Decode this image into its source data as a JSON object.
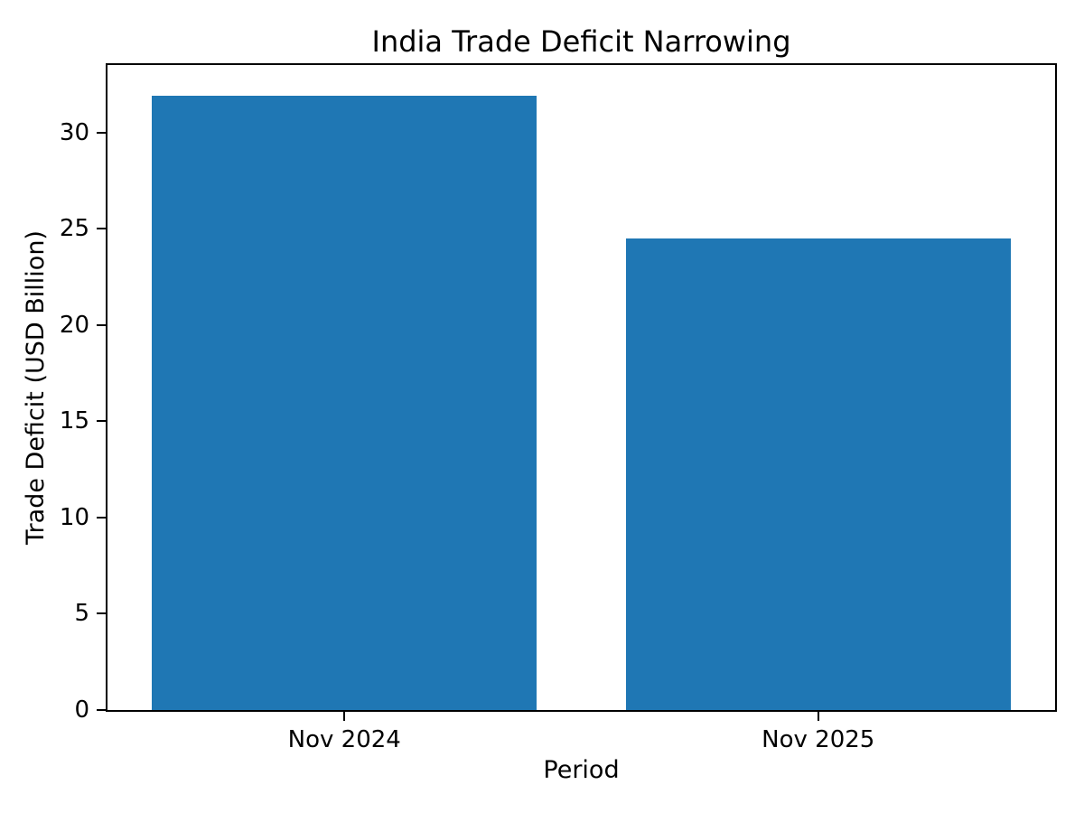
{
  "chart_data": {
    "type": "bar",
    "title": "India Trade Deficit Narrowing",
    "xlabel": "Period",
    "ylabel": "Trade Deficit (USD Billion)",
    "categories": [
      "Nov 2024",
      "Nov 2025"
    ],
    "values": [
      31.9,
      24.5
    ],
    "bar_color": "#1f77b4",
    "ylim": [
      0,
      33.5
    ],
    "yticks": [
      0,
      5,
      10,
      15,
      20,
      25,
      30
    ],
    "grid": false,
    "legend_position": "none",
    "background_color": "#ffffff",
    "bar_width_fraction": 0.406,
    "bar_center_fractions": [
      0.25,
      0.75
    ]
  }
}
